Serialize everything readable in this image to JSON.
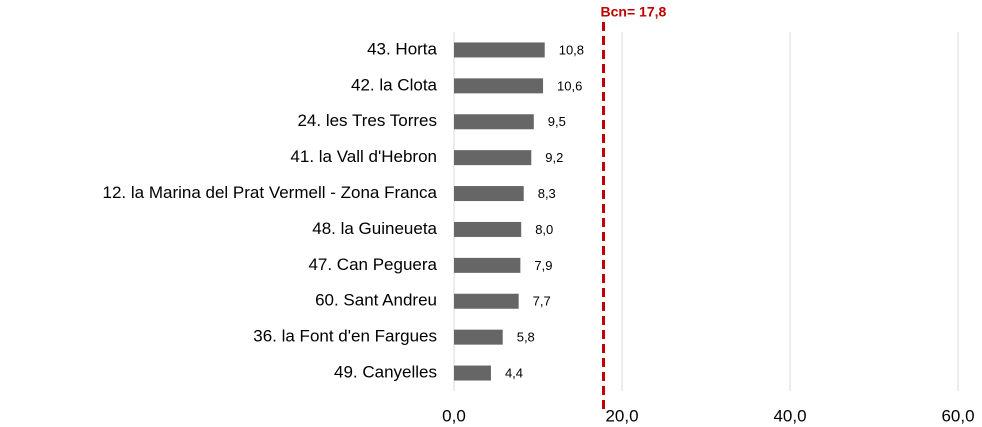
{
  "chart_data": {
    "type": "hbar",
    "categories": [
      "43. Horta",
      "42. la Clota",
      "24. les Tres Torres",
      "41. la Vall d'Hebron",
      "12. la Marina del Prat Vermell - Zona Franca",
      "48. la Guineueta",
      "47. Can Peguera",
      "60. Sant Andreu",
      "36. la Font d'en Fargues",
      "49. Canyelles"
    ],
    "values": [
      10.8,
      10.6,
      9.5,
      9.2,
      8.3,
      8.0,
      7.9,
      7.7,
      5.8,
      4.4
    ],
    "value_labels": [
      "10,8",
      "10,6",
      "9,5",
      "9,2",
      "8,3",
      "8,0",
      "7,9",
      "7,7",
      "5,8",
      "4,4"
    ],
    "color": "#666666",
    "xlim": [
      0,
      60
    ],
    "xticks": [
      {
        "value": 0,
        "label": "0,0"
      },
      {
        "value": 20,
        "label": "20,0"
      },
      {
        "value": 40,
        "label": "40,0"
      },
      {
        "value": 60,
        "label": "60,0"
      }
    ],
    "grid": true,
    "reference_line": {
      "value": 17.8,
      "label": "Bcn= 17,8",
      "color": "#c00000"
    }
  }
}
